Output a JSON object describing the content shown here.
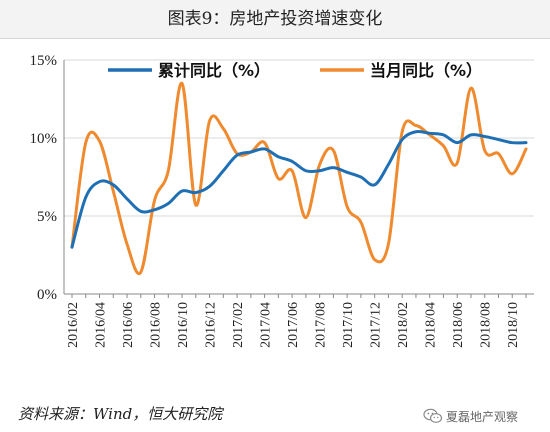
{
  "chart_data": {
    "type": "line",
    "title": "图表9：房地产投资增速变化",
    "source": "资料来源：Wind，恒大研究院",
    "watermark": "夏磊地产观察",
    "x": [
      "2016/02",
      "2016/03",
      "2016/04",
      "2016/05",
      "2016/06",
      "2016/07",
      "2016/08",
      "2016/09",
      "2016/10",
      "2016/11",
      "2016/12",
      "2017/01",
      "2017/02",
      "2017/03",
      "2017/04",
      "2017/05",
      "2017/06",
      "2017/07",
      "2017/08",
      "2017/09",
      "2017/10",
      "2017/11",
      "2017/12",
      "2018/01",
      "2018/02",
      "2018/03",
      "2018/04",
      "2018/05",
      "2018/06",
      "2018/07",
      "2018/08",
      "2018/09",
      "2018/10",
      "2018/11"
    ],
    "x_tick_labels": [
      "2016/02",
      "2016/04",
      "2016/06",
      "2016/08",
      "2016/10",
      "2016/12",
      "2017/02",
      "2017/04",
      "2017/06",
      "2017/08",
      "2017/10",
      "2017/12",
      "2018/02",
      "2018/04",
      "2018/06",
      "2018/08",
      "2018/10"
    ],
    "y_ticks": [
      "0%",
      "5%",
      "10%",
      "15%"
    ],
    "ylim": [
      0,
      15
    ],
    "legend_position": "top",
    "grid": "horizontal",
    "series": [
      {
        "name": "累计同比（%）",
        "color": "#1f6fb5",
        "values": [
          3.0,
          6.2,
          7.2,
          7.0,
          6.1,
          5.3,
          5.4,
          5.8,
          6.6,
          6.5,
          6.9,
          7.9,
          8.9,
          9.1,
          9.3,
          8.8,
          8.5,
          7.9,
          7.9,
          8.1,
          7.8,
          7.5,
          7.0,
          8.3,
          9.9,
          10.4,
          10.3,
          10.2,
          9.7,
          10.2,
          10.1,
          9.9,
          9.7,
          9.7
        ]
      },
      {
        "name": "当月同比（%）",
        "color": "#f08a2e",
        "values": [
          3.0,
          9.7,
          9.8,
          6.6,
          3.2,
          1.4,
          6.0,
          7.9,
          13.5,
          5.7,
          11.1,
          10.6,
          9.0,
          9.1,
          9.7,
          7.4,
          7.9,
          4.9,
          8.3,
          9.2,
          5.6,
          4.6,
          2.2,
          3.2,
          10.4,
          10.8,
          10.2,
          9.5,
          8.4,
          13.2,
          9.2,
          9.0,
          7.7,
          9.3
        ]
      }
    ]
  }
}
